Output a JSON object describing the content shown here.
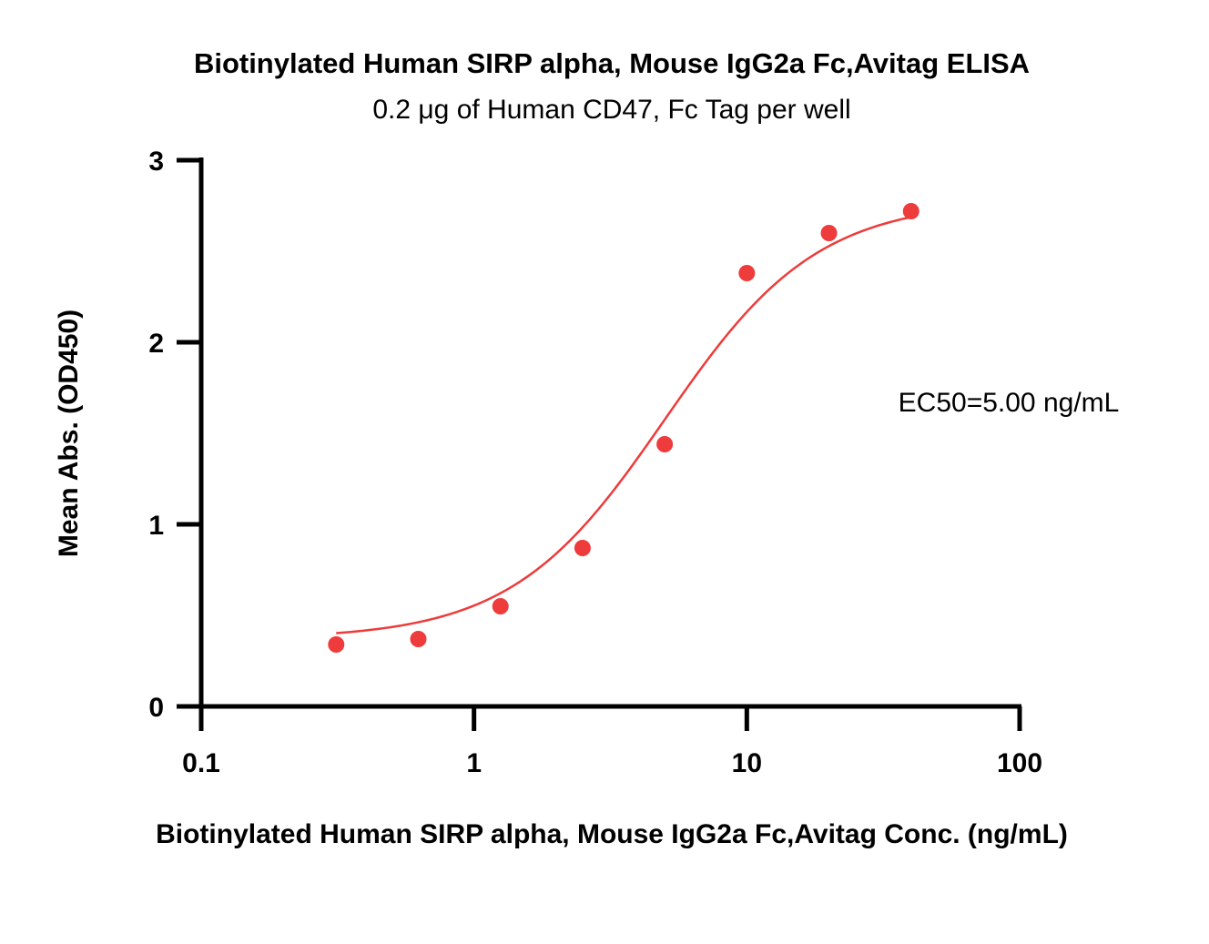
{
  "chart_data": {
    "type": "scatter",
    "title": "Biotinylated Human SIRP alpha, Mouse IgG2a Fc,Avitag ELISA",
    "subtitle": "0.2 μg of Human CD47, Fc Tag per well",
    "xlabel": "Biotinylated Human SIRP alpha, Mouse IgG2a Fc,Avitag Conc. (ng/mL)",
    "ylabel": "Mean Abs. (OD450)",
    "xscale": "log",
    "xlim": [
      0.1,
      100
    ],
    "ylim": [
      0,
      3
    ],
    "x_ticks": [
      "0.1",
      "1",
      "10",
      "100"
    ],
    "y_ticks": [
      "0",
      "1",
      "2",
      "3"
    ],
    "grid": false,
    "legend": "none",
    "annotation": "EC50=5.00 ng/mL",
    "series": [
      {
        "x": [
          0.3125,
          0.625,
          1.25,
          2.5,
          5,
          10,
          20,
          40
        ],
        "y": [
          0.34,
          0.37,
          0.55,
          0.87,
          1.44,
          2.38,
          2.6,
          2.72
        ],
        "color": "#ee3b3b"
      }
    ],
    "fit": {
      "model": "4PL",
      "bottom": 0.37,
      "top": 2.78,
      "ec50": 5.0,
      "hill": 1.55,
      "x_range": [
        0.3125,
        40
      ],
      "color": "#ee3b3b"
    }
  }
}
